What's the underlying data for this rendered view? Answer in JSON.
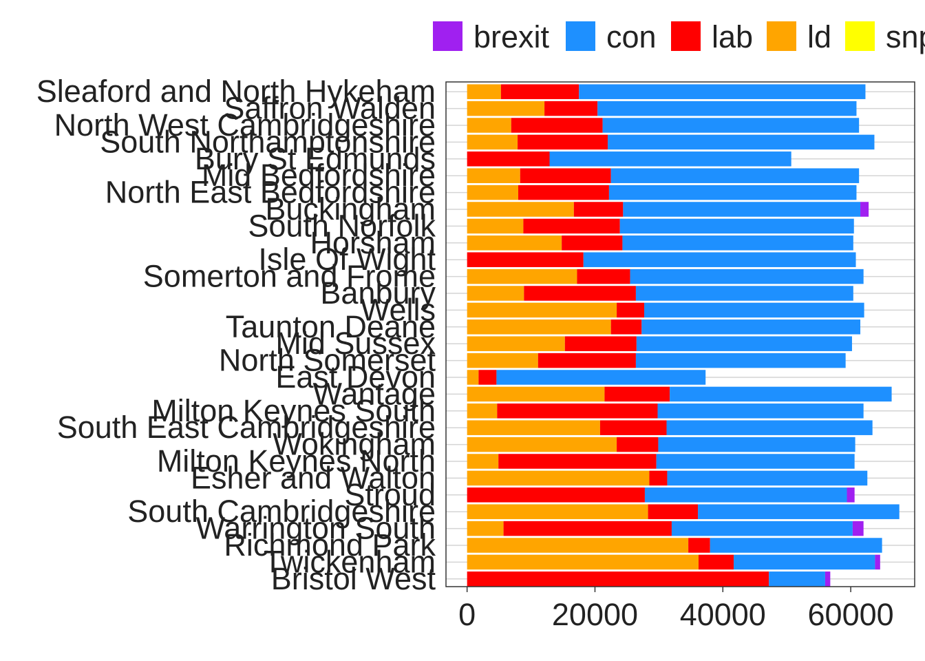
{
  "chart_data": {
    "type": "bar",
    "orientation": "horizontal",
    "stacked": true,
    "categories": [
      "Sleaford and North Hykeham",
      "Saffron Walden",
      "North West Cambridgeshire",
      "South Northamptonshire",
      "Bury St Edmunds",
      "Mid Bedfordshire",
      "North East Bedfordshire",
      "Buckingham",
      "South Norfolk",
      "Horsham",
      "Isle Of Wight",
      "Somerton and Frome",
      "Banbury",
      "Wells",
      "Taunton Deane",
      "Mid Sussex",
      "North Somerset",
      "East Devon",
      "Wantage",
      "Milton Keynes South",
      "South East Cambridgeshire",
      "Wokingham",
      "Milton Keynes North",
      "Esher and Walton",
      "Stroud",
      "South Cambridgeshire",
      "Warrington South",
      "Richmond Park",
      "Twickenham",
      "Bristol West"
    ],
    "series": [
      {
        "name": "ld",
        "color": "#FFA500",
        "values": [
          5300,
          12100,
          6900,
          7900,
          0,
          8300,
          8000,
          16700,
          8800,
          14800,
          0,
          17200,
          8900,
          23400,
          22500,
          15300,
          11100,
          1800,
          21500,
          4700,
          20800,
          23400,
          4900,
          28500,
          0,
          28300,
          5700,
          34600,
          36200,
          0
        ]
      },
      {
        "name": "lab",
        "color": "#FF0000",
        "values": [
          12200,
          8300,
          14300,
          14100,
          12900,
          14200,
          14200,
          7700,
          15100,
          9500,
          18200,
          8300,
          17500,
          4300,
          4800,
          11200,
          15300,
          2800,
          10200,
          25100,
          10400,
          6500,
          24700,
          2800,
          27800,
          7800,
          26300,
          3400,
          5500,
          47200
        ]
      },
      {
        "name": "con",
        "color": "#1E90FF",
        "values": [
          44800,
          40500,
          40100,
          41700,
          37800,
          38800,
          38700,
          37100,
          36600,
          36100,
          42600,
          36500,
          34000,
          34400,
          34200,
          33700,
          32800,
          32700,
          34700,
          32200,
          32200,
          30800,
          31000,
          31300,
          31600,
          31500,
          28300,
          26900,
          22100,
          8800
        ]
      },
      {
        "name": "brexit",
        "color": "#A020F0",
        "values": [
          0,
          0,
          0,
          0,
          0,
          0,
          0,
          1300,
          0,
          0,
          0,
          0,
          0,
          0,
          0,
          0,
          0,
          0,
          0,
          0,
          0,
          0,
          0,
          0,
          1200,
          0,
          1700,
          0,
          800,
          800
        ]
      },
      {
        "name": "snp",
        "color": "#FFFF00",
        "values": [
          0,
          0,
          0,
          0,
          0,
          0,
          0,
          0,
          0,
          0,
          0,
          0,
          0,
          0,
          0,
          0,
          0,
          0,
          0,
          0,
          0,
          0,
          0,
          0,
          0,
          0,
          0,
          0,
          0,
          0
        ]
      }
    ],
    "legend": {
      "placement": "top",
      "entries": [
        {
          "name": "brexit",
          "color": "#A020F0"
        },
        {
          "name": "con",
          "color": "#1E90FF"
        },
        {
          "name": "lab",
          "color": "#FF0000"
        },
        {
          "name": "ld",
          "color": "#FFA500"
        },
        {
          "name": "snp",
          "color": "#FFFF00"
        }
      ]
    },
    "xlim": [
      -3300,
      70000
    ],
    "xticks": [
      0,
      20000,
      40000,
      60000
    ],
    "title": "",
    "xlabel": "",
    "ylabel": "",
    "grid": true
  }
}
